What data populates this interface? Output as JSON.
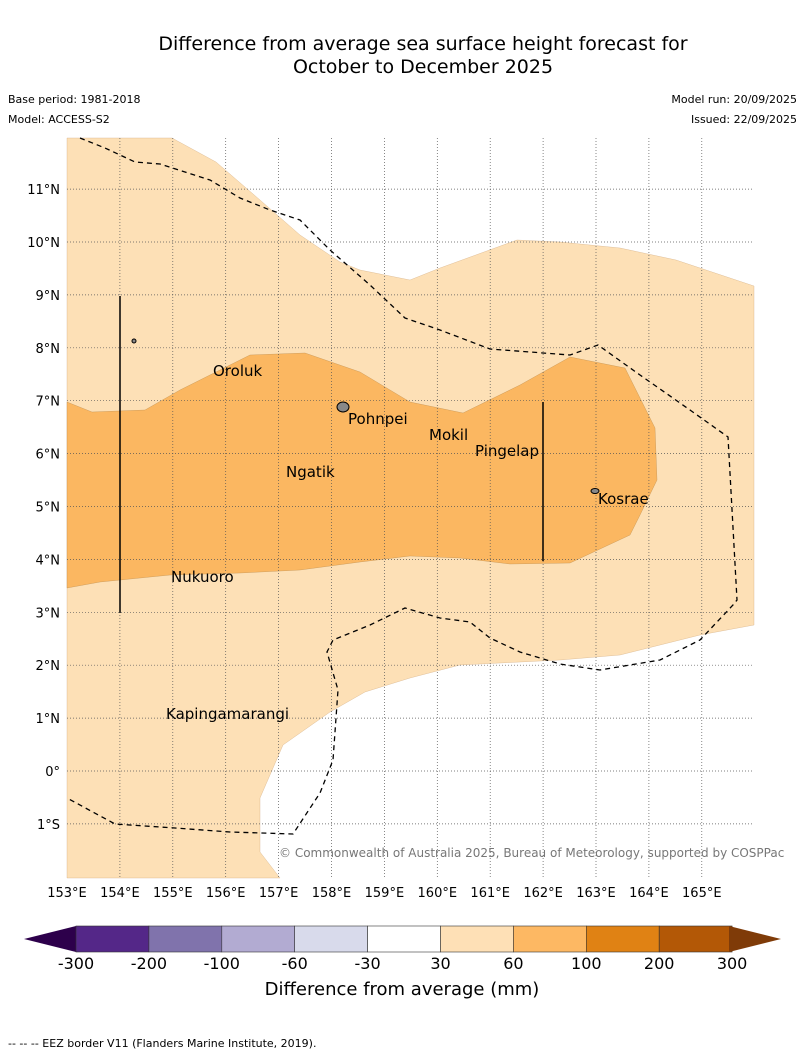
{
  "title": {
    "line1": "Difference from average sea surface height forecast for",
    "line2": "October to December 2025"
  },
  "meta": {
    "base_period": "Base period: 1981-2018",
    "model": "Model: ACCESS-S2",
    "model_run": "Model run: 20/09/2025",
    "issued": "Issued: 22/09/2025"
  },
  "map": {
    "lon_ticks": [
      "153°E",
      "154°E",
      "155°E",
      "156°E",
      "157°E",
      "158°E",
      "159°E",
      "160°E",
      "161°E",
      "162°E",
      "163°E",
      "164°E",
      "165°E"
    ],
    "lat_ticks": [
      "11°N",
      "10°N",
      "9°N",
      "8°N",
      "7°N",
      "6°N",
      "5°N",
      "4°N",
      "3°N",
      "2°N",
      "1°N",
      "0°",
      "1°S"
    ],
    "places": [
      "Oroluk",
      "Pohnpei",
      "Mokil",
      "Pingelap",
      "Ngatik",
      "Kosrae",
      "Nukuoro",
      "Kapingamarangi"
    ],
    "copyright": "© Commonwealth of Australia 2025, Bureau of Meteorology, supported by COSPPac",
    "colors": {
      "light": "#fde0b6",
      "medium": "#fbb761"
    }
  },
  "colorbar": {
    "ticks": [
      "-300",
      "-200",
      "-100",
      "-60",
      "-30",
      "30",
      "60",
      "100",
      "200",
      "300"
    ],
    "colors": [
      "#2d004b",
      "#542788",
      "#8073ac",
      "#b2abd2",
      "#d8daeb",
      "#ffffff",
      "#fee0b6",
      "#fdb863",
      "#e08214",
      "#b35806",
      "#7f3b08"
    ],
    "label": "Difference from average (mm)"
  },
  "footer": "-- -- -- EEZ border V11 (Flanders Marine Institute, 2019)."
}
